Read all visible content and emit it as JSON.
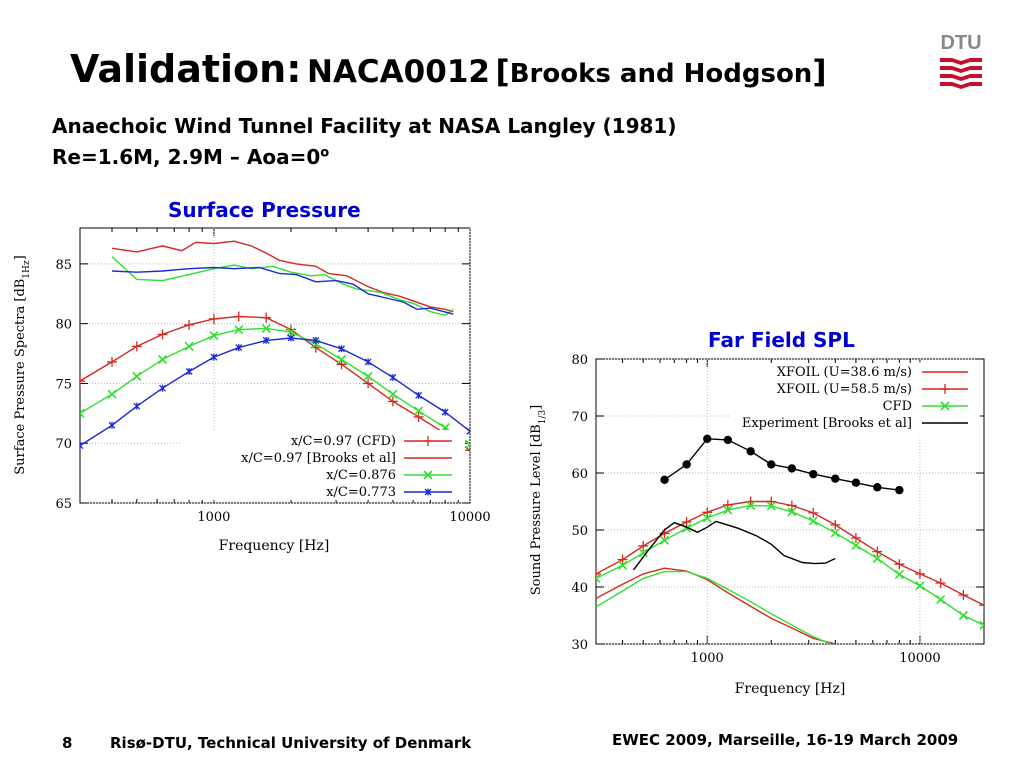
{
  "slide": {
    "title_main": "Validation:",
    "title_model": "NACA0012",
    "title_open": "[",
    "title_ref": "Brooks and Hodgson",
    "title_close": "]",
    "subtitle_1": "Anaechoic Wind Tunnel Facility at NASA Langley (1981)",
    "subtitle_2": "Re=1.6M, 2.9M – Aoa=0",
    "subtitle_2_sup": "o",
    "logo_text": "DTU",
    "page_number": "8",
    "footer_left": "Risø-DTU, Technical University of Denmark",
    "footer_right": "EWEC 2009, Marseille, 16-19 March 2009",
    "colors": {
      "red": "#d42a20",
      "green": "#2fe02f",
      "blue": "#1a2ad6",
      "black": "#000000",
      "heading_blue": "#0000d0",
      "logo_red": "#c8102e"
    }
  },
  "chart_data": [
    {
      "type": "line",
      "heading": "Surface Pressure",
      "xlabel": "Frequency [Hz]",
      "ylabel": "Surface Pressure Spectra [dB",
      "ylabel_sub": "1Hz",
      "ylabel_end": "]",
      "xscale": "log",
      "xlim": [
        300,
        10000
      ],
      "ylim": [
        65,
        88
      ],
      "xticks": [
        {
          "v": 1000,
          "label": "1000"
        },
        {
          "v": 10000,
          "label": "10000"
        }
      ],
      "yticks": [
        {
          "v": 65,
          "label": "65"
        },
        {
          "v": 70,
          "label": "70"
        },
        {
          "v": 75,
          "label": "75"
        },
        {
          "v": 80,
          "label": "80"
        },
        {
          "v": 85,
          "label": "85"
        }
      ],
      "legend_position": "bottom-right",
      "series": [
        {
          "name": "x/C=0.97 (CFD)",
          "color": "#d42a20",
          "marker": "plus",
          "points": [
            [
              300,
              75.2
            ],
            [
              400,
              76.8
            ],
            [
              500,
              78.1
            ],
            [
              630,
              79.1
            ],
            [
              800,
              79.9
            ],
            [
              1000,
              80.4
            ],
            [
              1250,
              80.6
            ],
            [
              1600,
              80.5
            ],
            [
              2000,
              79.5
            ],
            [
              2500,
              78
            ],
            [
              3150,
              76.6
            ],
            [
              4000,
              75
            ],
            [
              5000,
              73.5
            ],
            [
              6300,
              72.2
            ],
            [
              8000,
              70.8
            ],
            [
              10000,
              69.4
            ]
          ]
        },
        {
          "name": "x/C=0.97 [Brooks et al]",
          "color": "#d42a20",
          "marker": "none",
          "points": [
            [
              400,
              86.3
            ],
            [
              500,
              86
            ],
            [
              630,
              86.5
            ],
            [
              750,
              86.1
            ],
            [
              850,
              86.8
            ],
            [
              1000,
              86.7
            ],
            [
              1200,
              86.9
            ],
            [
              1400,
              86.5
            ],
            [
              1600,
              85.9
            ],
            [
              1800,
              85.3
            ],
            [
              2100,
              85
            ],
            [
              2500,
              84.8
            ],
            [
              2800,
              84.2
            ],
            [
              3300,
              84
            ],
            [
              4000,
              83.1
            ],
            [
              4600,
              82.6
            ],
            [
              5300,
              82.3
            ],
            [
              6000,
              81.9
            ],
            [
              7000,
              81.4
            ],
            [
              8000,
              81.2
            ],
            [
              8600,
              81
            ]
          ]
        },
        {
          "name": "x/C=0.876",
          "color": "#2fe02f",
          "marker": "cross",
          "points": [
            [
              300,
              72.5
            ],
            [
              400,
              74.1
            ],
            [
              500,
              75.6
            ],
            [
              630,
              77
            ],
            [
              800,
              78.1
            ],
            [
              1000,
              79
            ],
            [
              1250,
              79.5
            ],
            [
              1600,
              79.6
            ],
            [
              2000,
              79.3
            ],
            [
              2500,
              78.3
            ],
            [
              3150,
              77
            ],
            [
              4000,
              75.6
            ],
            [
              5000,
              74.1
            ],
            [
              6300,
              72.7
            ],
            [
              8000,
              71.3
            ],
            [
              10000,
              69.9
            ]
          ]
        },
        {
          "name": "",
          "color": "#2fe02f",
          "marker": "none",
          "points": [
            [
              400,
              85.6
            ],
            [
              500,
              83.7
            ],
            [
              630,
              83.6
            ],
            [
              800,
              84.1
            ],
            [
              1000,
              84.6
            ],
            [
              1200,
              84.9
            ],
            [
              1400,
              84.6
            ],
            [
              1700,
              84.8
            ],
            [
              2000,
              84.3
            ],
            [
              2400,
              84
            ],
            [
              2700,
              84.1
            ],
            [
              3200,
              83.3
            ],
            [
              3600,
              82.9
            ],
            [
              4500,
              82.6
            ],
            [
              5300,
              82
            ],
            [
              6000,
              81.7
            ],
            [
              7000,
              81
            ],
            [
              8000,
              80.7
            ],
            [
              8600,
              81.2
            ]
          ]
        },
        {
          "name": "x/C=0.773",
          "color": "#1a2ad6",
          "marker": "star",
          "points": [
            [
              300,
              69.8
            ],
            [
              400,
              71.5
            ],
            [
              500,
              73.1
            ],
            [
              630,
              74.6
            ],
            [
              800,
              76
            ],
            [
              1000,
              77.2
            ],
            [
              1250,
              78
            ],
            [
              1600,
              78.6
            ],
            [
              2000,
              78.8
            ],
            [
              2500,
              78.6
            ],
            [
              3150,
              77.9
            ],
            [
              4000,
              76.8
            ],
            [
              5000,
              75.5
            ],
            [
              6300,
              74
            ],
            [
              8000,
              72.6
            ],
            [
              10000,
              71
            ]
          ]
        },
        {
          "name": "",
          "color": "#1a2ad6",
          "marker": "none",
          "points": [
            [
              400,
              84.4
            ],
            [
              500,
              84.3
            ],
            [
              630,
              84.4
            ],
            [
              800,
              84.6
            ],
            [
              1000,
              84.7
            ],
            [
              1200,
              84.6
            ],
            [
              1500,
              84.7
            ],
            [
              1800,
              84.2
            ],
            [
              2100,
              84.1
            ],
            [
              2500,
              83.5
            ],
            [
              3000,
              83.6
            ],
            [
              3500,
              83.3
            ],
            [
              4000,
              82.5
            ],
            [
              4800,
              82.1
            ],
            [
              5500,
              81.8
            ],
            [
              6200,
              81.2
            ],
            [
              7000,
              81.3
            ],
            [
              8600,
              80.8
            ]
          ]
        }
      ]
    },
    {
      "type": "line",
      "heading": "Far Field SPL",
      "xlabel": "Frequency [Hz]",
      "ylabel": "Sound Pressure Level [dB",
      "ylabel_sub": "1/3",
      "ylabel_end": "]",
      "xscale": "log",
      "xlim": [
        300,
        20000
      ],
      "ylim": [
        30,
        80
      ],
      "xticks": [
        {
          "v": 1000,
          "label": "1000"
        },
        {
          "v": 10000,
          "label": "10000"
        }
      ],
      "yticks": [
        {
          "v": 30,
          "label": "30"
        },
        {
          "v": 40,
          "label": "40"
        },
        {
          "v": 50,
          "label": "50"
        },
        {
          "v": 60,
          "label": "60"
        },
        {
          "v": 70,
          "label": "70"
        },
        {
          "v": 80,
          "label": "80"
        }
      ],
      "legend_position": "top-right",
      "series": [
        {
          "name": "XFOIL (U=38.6 m/s)",
          "color": "#d42a20",
          "marker": "none",
          "points": [
            [
              300,
              38
            ],
            [
              400,
              40.5
            ],
            [
              500,
              42.3
            ],
            [
              630,
              43.3
            ],
            [
              800,
              42.8
            ],
            [
              1000,
              41.3
            ],
            [
              1250,
              39
            ],
            [
              1600,
              36.6
            ],
            [
              2000,
              34.5
            ],
            [
              2500,
              32.8
            ],
            [
              3150,
              31
            ],
            [
              4000,
              30
            ]
          ]
        },
        {
          "name": "XFOIL (U=58.5 m/s)",
          "color": "#d42a20",
          "marker": "plus",
          "points": [
            [
              300,
              42.3
            ],
            [
              400,
              44.8
            ],
            [
              500,
              47.2
            ],
            [
              630,
              49.4
            ],
            [
              800,
              51.4
            ],
            [
              1000,
              53.1
            ],
            [
              1250,
              54.4
            ],
            [
              1600,
              55
            ],
            [
              2000,
              55
            ],
            [
              2500,
              54.3
            ],
            [
              3150,
              53
            ],
            [
              4000,
              50.9
            ],
            [
              5000,
              48.6
            ],
            [
              6300,
              46.2
            ],
            [
              8000,
              44
            ],
            [
              10000,
              42.3
            ],
            [
              12500,
              40.7
            ],
            [
              16000,
              38.6
            ],
            [
              20000,
              36.8
            ]
          ]
        },
        {
          "name": "CFD",
          "color": "#2fe02f",
          "marker": "cross",
          "points": [
            [
              300,
              41.5
            ],
            [
              400,
              43.8
            ],
            [
              500,
              46
            ],
            [
              630,
              48.2
            ],
            [
              800,
              50.3
            ],
            [
              1000,
              52.1
            ],
            [
              1250,
              53.5
            ],
            [
              1600,
              54.3
            ],
            [
              2000,
              54.2
            ],
            [
              2500,
              53.2
            ],
            [
              3150,
              51.6
            ],
            [
              4000,
              49.5
            ],
            [
              5000,
              47.3
            ],
            [
              6300,
              45
            ],
            [
              8000,
              42.2
            ],
            [
              10000,
              40.2
            ],
            [
              12500,
              37.8
            ],
            [
              16000,
              35
            ],
            [
              20000,
              33.3
            ]
          ]
        },
        {
          "name": "",
          "color": "#2fe02f",
          "marker": "none",
          "points": [
            [
              300,
              36.5
            ],
            [
              400,
              39.3
            ],
            [
              500,
              41.5
            ],
            [
              630,
              42.7
            ],
            [
              800,
              42.7
            ],
            [
              1000,
              41.5
            ],
            [
              1250,
              39.6
            ],
            [
              1600,
              37.4
            ],
            [
              2000,
              35.3
            ],
            [
              2500,
              33.3
            ],
            [
              3150,
              31.3
            ],
            [
              3800,
              30
            ]
          ]
        },
        {
          "name": "Experiment [Brooks et al]",
          "color": "#000000",
          "marker": "none",
          "points": [
            [
              450,
              43
            ],
            [
              530,
              46.5
            ],
            [
              630,
              50
            ],
            [
              700,
              51.3
            ],
            [
              800,
              50.5
            ],
            [
              900,
              49.6
            ],
            [
              1000,
              50.5
            ],
            [
              1100,
              51.5
            ],
            [
              1400,
              50.3
            ],
            [
              1700,
              49
            ],
            [
              2000,
              47.5
            ],
            [
              2300,
              45.5
            ],
            [
              2800,
              44.3
            ],
            [
              3200,
              44.1
            ],
            [
              3600,
              44.2
            ],
            [
              4000,
              45
            ]
          ]
        },
        {
          "name": "",
          "color": "#000000",
          "marker": "dot",
          "points": [
            [
              630,
              58.8
            ],
            [
              800,
              61.5
            ],
            [
              1000,
              66
            ],
            [
              1250,
              65.8
            ],
            [
              1600,
              63.8
            ],
            [
              2000,
              61.5
            ],
            [
              2500,
              60.8
            ],
            [
              3150,
              59.8
            ],
            [
              4000,
              59
            ],
            [
              5000,
              58.3
            ],
            [
              6300,
              57.5
            ],
            [
              8000,
              57
            ]
          ]
        }
      ]
    }
  ]
}
